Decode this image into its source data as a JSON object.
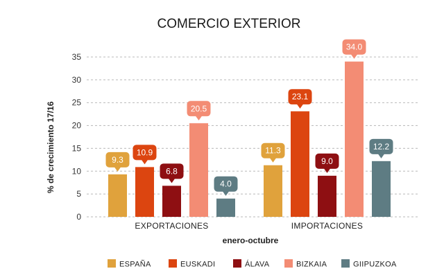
{
  "chart_data": {
    "type": "bar",
    "title": "COMERCIO EXTERIOR",
    "xlabel": "enero-octubre",
    "ylabel": "% de crecimiento 17/16",
    "ylim": [
      0,
      35
    ],
    "yticks": [
      0,
      5,
      10,
      15,
      20,
      25,
      30,
      35
    ],
    "grid": true,
    "legend_position": "bottom",
    "categories": [
      "EXPORTACIONES",
      "IMPORTACIONES"
    ],
    "series": [
      {
        "name": "ESPAÑA",
        "color": "#E0A23C",
        "values": [
          9.3,
          11.3
        ]
      },
      {
        "name": "EUSKADI",
        "color": "#DC4510",
        "values": [
          10.9,
          23.1
        ]
      },
      {
        "name": "ÁLAVA",
        "color": "#8E0F12",
        "values": [
          6.8,
          9.0
        ]
      },
      {
        "name": "BIZKAIA",
        "color": "#F38C74",
        "values": [
          20.5,
          34.0
        ]
      },
      {
        "name": "GIIPUZKOA",
        "color": "#5E7C83",
        "values": [
          4.0,
          12.2
        ]
      }
    ]
  }
}
